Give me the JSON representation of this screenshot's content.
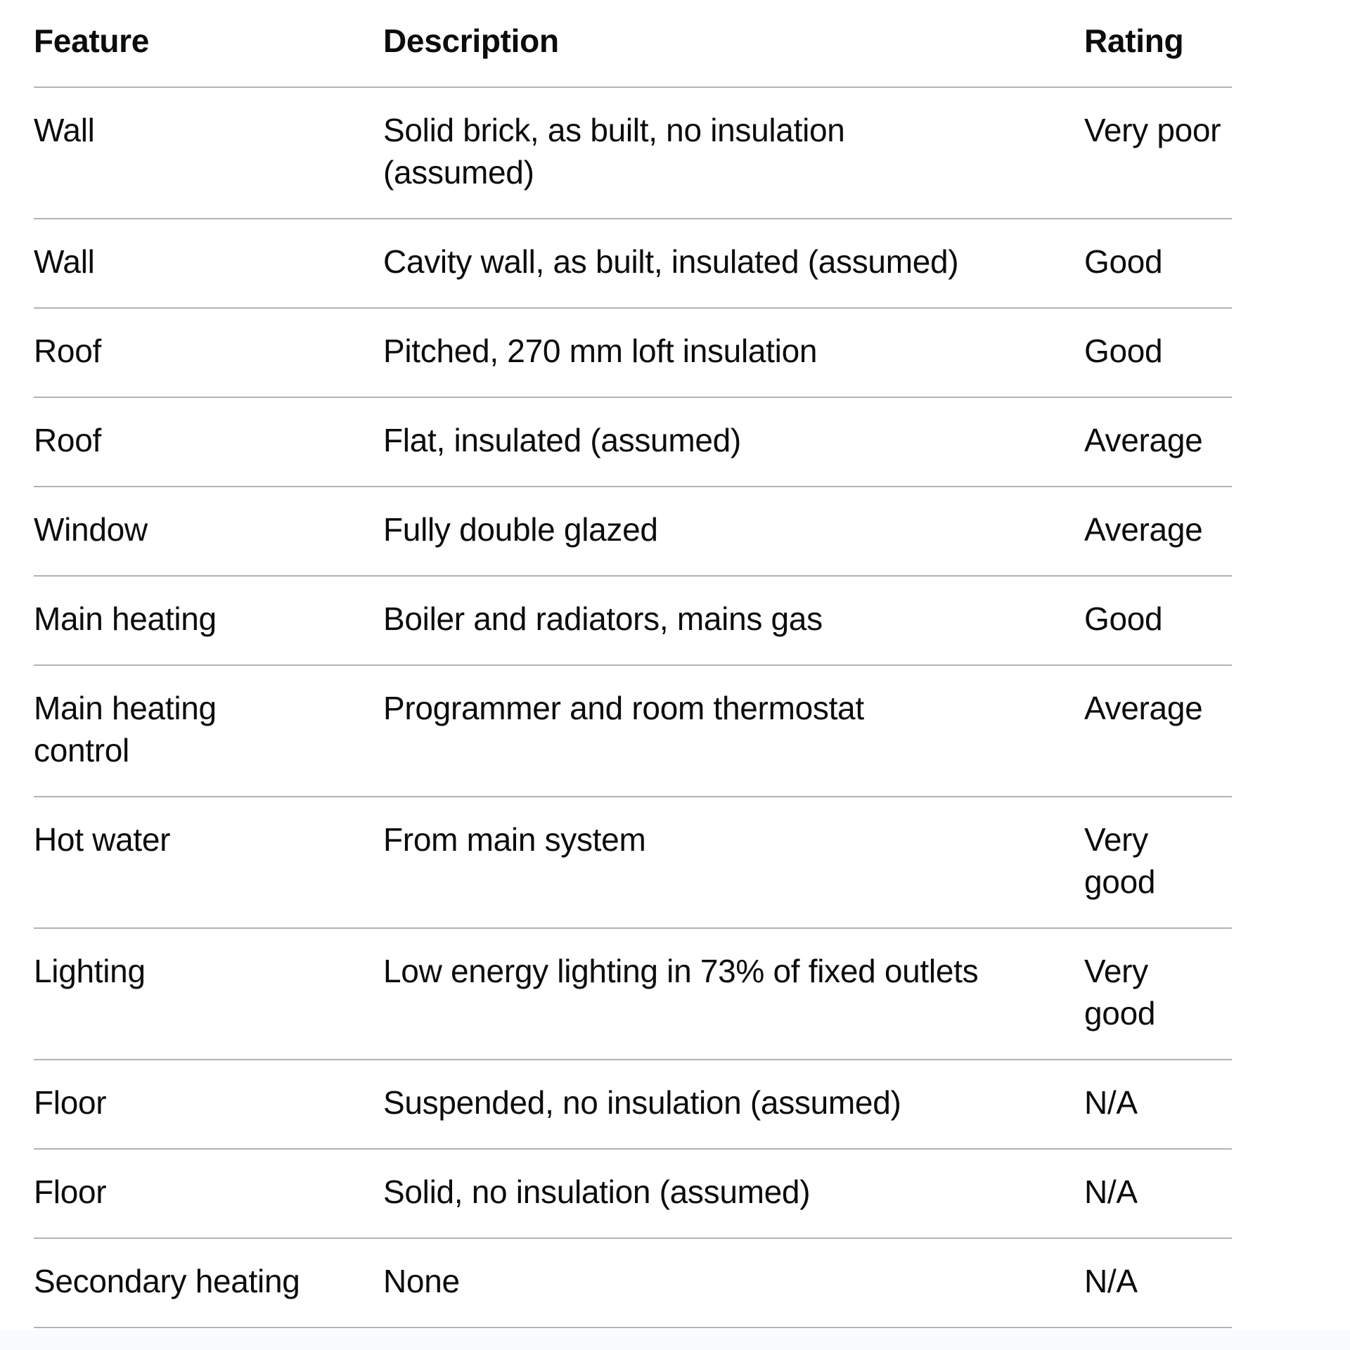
{
  "page": {
    "background_color": "#ffffff",
    "bottom_strip_color": "#fafbfd",
    "text_color": "#0b0c0c",
    "rule_color": "#b1b4b6"
  },
  "table": {
    "columns": [
      "Feature",
      "Description",
      "Rating"
    ],
    "rows": [
      {
        "feature": "Wall",
        "description": "Solid brick, as built, no insulation\n(assumed)",
        "rating": "Very poor"
      },
      {
        "feature": "Wall",
        "description": "Cavity wall, as built, insulated (assumed)",
        "rating": "Good"
      },
      {
        "feature": "Roof",
        "description": "Pitched, 270 mm loft insulation",
        "rating": "Good"
      },
      {
        "feature": "Roof",
        "description": "Flat, insulated (assumed)",
        "rating": "Average"
      },
      {
        "feature": "Window",
        "description": "Fully double glazed",
        "rating": "Average"
      },
      {
        "feature": "Main heating",
        "description": "Boiler and radiators, mains gas",
        "rating": "Good"
      },
      {
        "feature": "Main heating\ncontrol",
        "description": "Programmer and room thermostat",
        "rating": "Average"
      },
      {
        "feature": "Hot water",
        "description": "From main system",
        "rating": "Very\ngood"
      },
      {
        "feature": "Lighting",
        "description": "Low energy lighting in 73% of fixed outlets",
        "rating": "Very\ngood"
      },
      {
        "feature": "Floor",
        "description": "Suspended, no insulation (assumed)",
        "rating": "N/A"
      },
      {
        "feature": "Floor",
        "description": "Solid, no insulation (assumed)",
        "rating": "N/A"
      },
      {
        "feature": "Secondary heating",
        "description": "None",
        "rating": "N/A"
      }
    ]
  }
}
